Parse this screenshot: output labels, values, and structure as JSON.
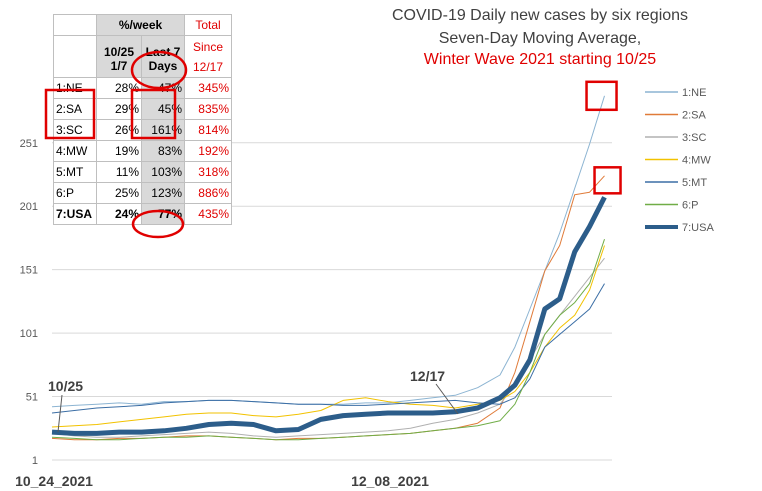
{
  "title": {
    "line1": "COVID-19 Daily new cases by six regions",
    "line2": "Seven-Day Moving Average,",
    "line3": "Winter Wave 2021 starting 10/25"
  },
  "table": {
    "header_pct_week": "%/week",
    "header_total": "Total",
    "header_since": "Since",
    "header_col_a": [
      "10/25",
      "1/7"
    ],
    "header_col_b": [
      "Last 7",
      "Days"
    ],
    "header_col_c": "12/17",
    "rows": [
      {
        "region": "1:NE",
        "a": "28%",
        "b": "47%",
        "c": "345%"
      },
      {
        "region": "2:SA",
        "a": "29%",
        "b": "45%",
        "c": "835%"
      },
      {
        "region": "3:SC",
        "a": "26%",
        "b": "161%",
        "c": "814%"
      },
      {
        "region": "4:MW",
        "a": "19%",
        "b": "83%",
        "c": "192%"
      },
      {
        "region": "5:MT",
        "a": "11%",
        "b": "103%",
        "c": "318%"
      },
      {
        "region": "6:P",
        "a": "25%",
        "b": "123%",
        "c": "886%"
      },
      {
        "region": "7:USA",
        "a": "24%",
        "b": "77%",
        "c": "435%"
      }
    ]
  },
  "annotations": {
    "start": "10/25",
    "mid": "12/17"
  },
  "colors": {
    "NE": "#8cb4d2",
    "SA": "#e07b39",
    "SC": "#b0b0b0",
    "MW": "#f2c200",
    "MT": "#3b6ea5",
    "P": "#70ad47",
    "USA": "#2c5d8a",
    "highlight": "#e00000"
  },
  "chart_data": {
    "type": "line",
    "title": "COVID-19 Daily new cases by six regions Seven-Day Moving Average, Winter Wave 2021 starting 10/25",
    "xlabel": "",
    "ylabel": "",
    "x_tick_labels": [
      "10_24_2021",
      "12_08_2021"
    ],
    "x_index_range": [
      0,
      75
    ],
    "x_tick_indices": [
      0,
      45
    ],
    "ylim": [
      1,
      251
    ],
    "y_ticks": [
      1,
      51,
      101,
      151,
      201,
      251
    ],
    "grid": true,
    "legend_position": "right",
    "series": [
      {
        "name": "1:NE",
        "key": "NE",
        "width": 1,
        "x": [
          0,
          3,
          6,
          9,
          12,
          15,
          18,
          21,
          24,
          27,
          30,
          33,
          36,
          39,
          42,
          45,
          48,
          51,
          54,
          57,
          60,
          62,
          64,
          66,
          68,
          70,
          72,
          74
        ],
        "values": [
          43,
          44,
          45,
          46,
          45,
          47,
          47,
          48,
          48,
          47,
          46,
          45,
          45,
          45,
          46,
          46,
          48,
          50,
          52,
          58,
          68,
          90,
          120,
          150,
          180,
          215,
          250,
          288
        ]
      },
      {
        "name": "2:SA",
        "key": "SA",
        "width": 1,
        "x": [
          0,
          3,
          6,
          9,
          12,
          15,
          18,
          21,
          24,
          27,
          30,
          33,
          36,
          39,
          42,
          45,
          48,
          51,
          54,
          57,
          60,
          62,
          64,
          66,
          68,
          70,
          72,
          74
        ],
        "values": [
          18,
          17,
          17,
          18,
          18,
          19,
          20,
          20,
          19,
          18,
          17,
          18,
          18,
          19,
          20,
          21,
          22,
          24,
          26,
          30,
          42,
          70,
          110,
          150,
          170,
          210,
          212,
          225
        ]
      },
      {
        "name": "3:SC",
        "key": "SC",
        "width": 1,
        "x": [
          0,
          3,
          6,
          9,
          12,
          15,
          18,
          21,
          24,
          27,
          30,
          33,
          36,
          39,
          42,
          45,
          48,
          51,
          54,
          57,
          60,
          62,
          64,
          66,
          68,
          70,
          72,
          74
        ],
        "values": [
          22,
          20,
          19,
          19,
          20,
          21,
          22,
          23,
          22,
          20,
          19,
          20,
          21,
          22,
          23,
          24,
          26,
          30,
          33,
          38,
          45,
          60,
          80,
          100,
          115,
          130,
          145,
          160
        ]
      },
      {
        "name": "4:MW",
        "key": "MW",
        "width": 1,
        "x": [
          0,
          3,
          6,
          9,
          12,
          15,
          18,
          21,
          24,
          27,
          30,
          33,
          36,
          39,
          42,
          45,
          48,
          51,
          54,
          57,
          60,
          62,
          64,
          66,
          68,
          70,
          72,
          74
        ],
        "values": [
          27,
          28,
          29,
          31,
          33,
          35,
          37,
          38,
          38,
          36,
          35,
          37,
          40,
          48,
          50,
          47,
          45,
          44,
          42,
          45,
          48,
          55,
          70,
          90,
          105,
          115,
          135,
          170
        ]
      },
      {
        "name": "5:MT",
        "key": "MT",
        "width": 1,
        "x": [
          0,
          3,
          6,
          9,
          12,
          15,
          18,
          21,
          24,
          27,
          30,
          33,
          36,
          39,
          42,
          45,
          48,
          51,
          54,
          57,
          60,
          62,
          64,
          66,
          68,
          70,
          72,
          74
        ],
        "values": [
          38,
          40,
          42,
          43,
          44,
          46,
          47,
          48,
          48,
          47,
          46,
          45,
          45,
          44,
          44,
          45,
          46,
          47,
          48,
          46,
          45,
          50,
          65,
          90,
          100,
          110,
          120,
          140
        ]
      },
      {
        "name": "6:P",
        "key": "P",
        "width": 1,
        "x": [
          0,
          3,
          6,
          9,
          12,
          15,
          18,
          21,
          24,
          27,
          30,
          33,
          36,
          39,
          42,
          45,
          48,
          51,
          54,
          57,
          60,
          62,
          64,
          66,
          68,
          70,
          72,
          74
        ],
        "values": [
          19,
          18,
          17,
          17,
          18,
          19,
          19,
          20,
          19,
          18,
          17,
          17,
          18,
          19,
          20,
          21,
          22,
          24,
          26,
          28,
          32,
          45,
          70,
          100,
          115,
          125,
          140,
          175
        ]
      },
      {
        "name": "7:USA",
        "key": "USA",
        "width": 5,
        "x": [
          0,
          3,
          6,
          9,
          12,
          15,
          18,
          21,
          24,
          27,
          30,
          33,
          36,
          39,
          42,
          45,
          48,
          51,
          54,
          57,
          60,
          62,
          64,
          66,
          68,
          70,
          72,
          74
        ],
        "values": [
          23,
          22,
          22,
          23,
          23,
          24,
          26,
          29,
          30,
          29,
          24,
          25,
          33,
          36,
          37,
          38,
          38,
          38,
          39,
          42,
          50,
          60,
          80,
          120,
          128,
          165,
          185,
          208
        ]
      }
    ]
  }
}
